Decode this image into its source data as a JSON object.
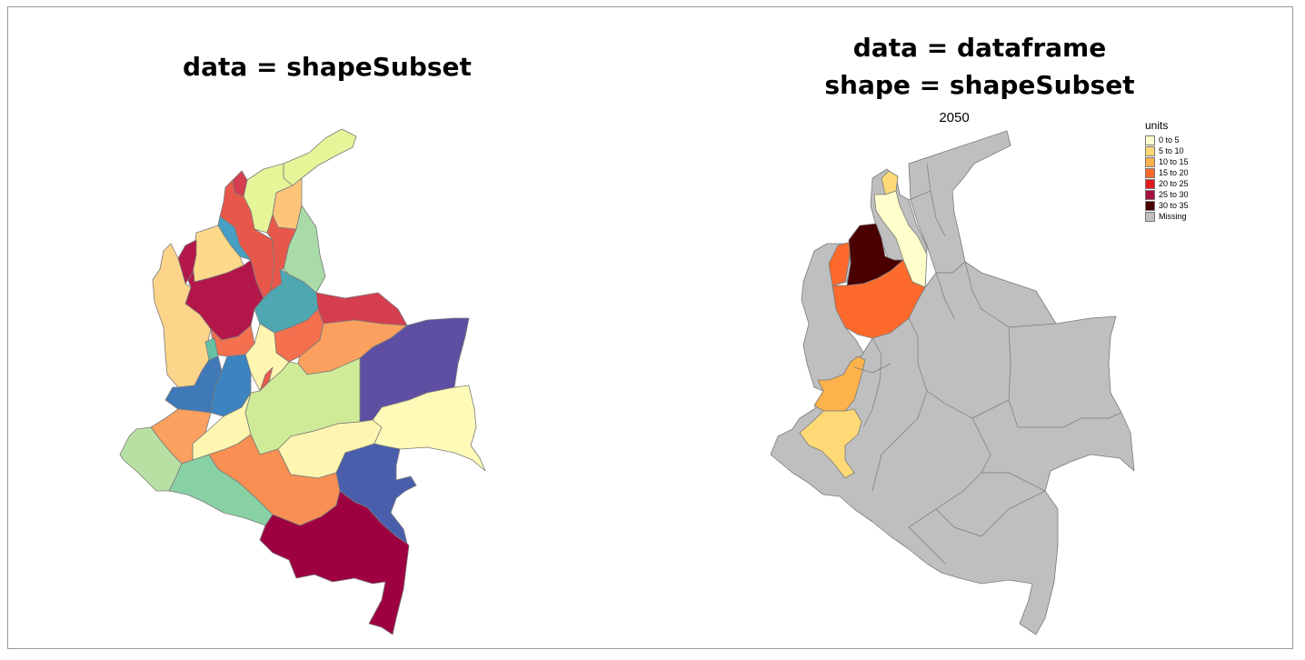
{
  "panels": {
    "left": {
      "title": "data = shapeSubset"
    },
    "right": {
      "title_line1": "data = dataframe",
      "title_line2": "shape = shapeSubset",
      "map_title": "2050",
      "legend": {
        "title": "units",
        "items": [
          {
            "label": "0 to 5",
            "color": "#ffffcc"
          },
          {
            "label": "5 to 10",
            "color": "#fed976"
          },
          {
            "label": "10 to 15",
            "color": "#feb24c"
          },
          {
            "label": "15 to 20",
            "color": "#fd6a2c"
          },
          {
            "label": "20 to 25",
            "color": "#e31a1c"
          },
          {
            "label": "25 to 30",
            "color": "#a50f3e"
          },
          {
            "label": "30 to 35",
            "color": "#4a0000"
          },
          {
            "label": "Missing",
            "color": "#bfbfbf"
          }
        ]
      }
    }
  },
  "colors": {
    "frame_border": "#9a9a9a",
    "region_stroke": "#707070",
    "missing": "#bfbfbf"
  }
}
